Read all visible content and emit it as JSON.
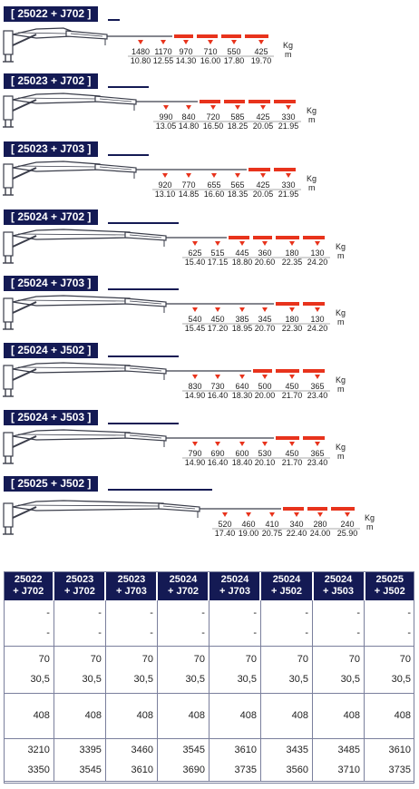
{
  "colors": {
    "navy": "#141a54",
    "red": "#e8331c",
    "boom": "#3a3d4a"
  },
  "units": {
    "weight": "Kg",
    "distance": "m"
  },
  "configs": [
    {
      "label": "[ 25022 + J702 ]",
      "kg": [
        "1480",
        "1170",
        "970",
        "710",
        "550",
        "425"
      ],
      "m": [
        "10.80",
        "12.55",
        "14.30",
        "16.00",
        "17.80",
        "19.70"
      ],
      "red_segments": 4
    },
    {
      "label": "[ 25023 + J702 ]",
      "kg": [
        "990",
        "840",
        "720",
        "585",
        "425",
        "330"
      ],
      "m": [
        "13.05",
        "14.80",
        "16.50",
        "18.25",
        "20.05",
        "21.95"
      ],
      "red_segments": 4
    },
    {
      "label": "[ 25023 + J703 ]",
      "kg": [
        "920",
        "770",
        "655",
        "565",
        "425",
        "330"
      ],
      "m": [
        "13.10",
        "14.85",
        "16.60",
        "18.35",
        "20.05",
        "21.95"
      ],
      "red_segments": 2
    },
    {
      "label": "[ 25024 + J702 ]",
      "kg": [
        "625",
        "515",
        "445",
        "360",
        "180",
        "130"
      ],
      "m": [
        "15.40",
        "17.15",
        "18.80",
        "20.60",
        "22.35",
        "24.20"
      ],
      "red_segments": 4
    },
    {
      "label": "[ 25024 + J703 ]",
      "kg": [
        "540",
        "450",
        "385",
        "345",
        "180",
        "130"
      ],
      "m": [
        "15.45",
        "17.20",
        "18.95",
        "20.70",
        "22.30",
        "24.20"
      ],
      "red_segments": 2
    },
    {
      "label": "[ 25024 + J502 ]",
      "kg": [
        "830",
        "730",
        "640",
        "500",
        "450",
        "365"
      ],
      "m": [
        "14.90",
        "16.40",
        "18.30",
        "20.00",
        "21.70",
        "23.40"
      ],
      "red_segments": 3
    },
    {
      "label": "[ 25024 + J503 ]",
      "kg": [
        "790",
        "690",
        "600",
        "530",
        "450",
        "365"
      ],
      "m": [
        "14.90",
        "16.40",
        "18.40",
        "20.10",
        "21.70",
        "23.40"
      ],
      "red_segments": 2
    },
    {
      "label": "[ 25025 + J502 ]",
      "kg": [
        "520",
        "460",
        "410",
        "340",
        "280",
        "240"
      ],
      "m": [
        "17.40",
        "19.00",
        "20.75",
        "22.40",
        "24.00",
        "25.90"
      ],
      "red_segments": 3
    }
  ],
  "table": {
    "headers": [
      [
        "25022",
        "+ J702"
      ],
      [
        "25023",
        "+ J702"
      ],
      [
        "25023",
        "+ J703"
      ],
      [
        "25024",
        "+ J702"
      ],
      [
        "25024",
        "+ J703"
      ],
      [
        "25024",
        "+ J502"
      ],
      [
        "25024",
        "+ J503"
      ],
      [
        "25025",
        "+ J502"
      ]
    ],
    "row_dash": [
      "-",
      "-"
    ],
    "row_a": [
      "70",
      "30,5"
    ],
    "row_b": [
      "408"
    ],
    "row_c": [
      [
        "3210",
        "3350"
      ],
      [
        "3395",
        "3545"
      ],
      [
        "3460",
        "3610"
      ],
      [
        "3545",
        "3690"
      ],
      [
        "3610",
        "3735"
      ],
      [
        "3435",
        "3560"
      ],
      [
        "3485",
        "3710"
      ],
      [
        "3610",
        "3735"
      ]
    ]
  }
}
